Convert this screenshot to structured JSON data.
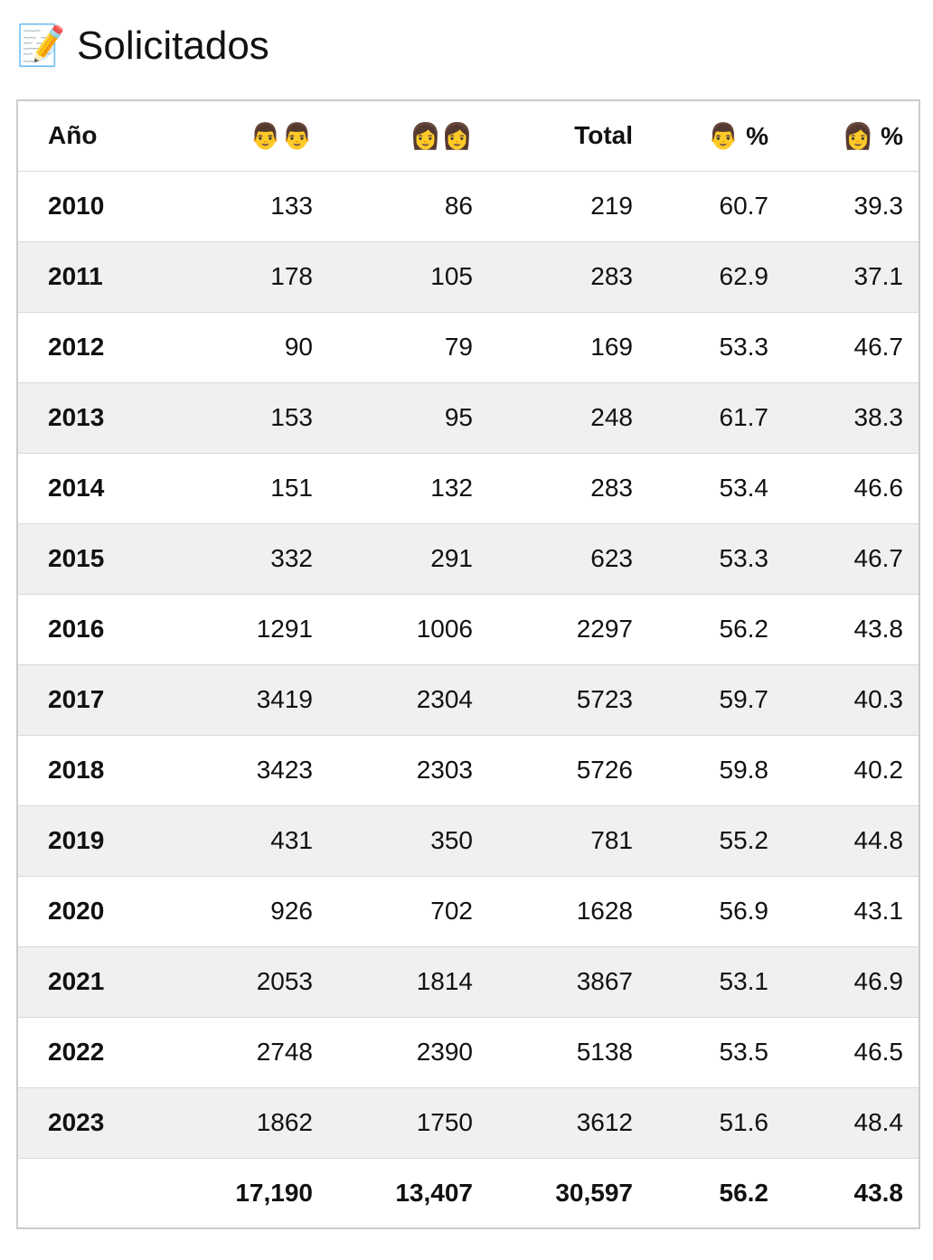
{
  "header": {
    "title": "📝 Solicitados"
  },
  "table": {
    "columns": [
      "Año",
      "👨👨",
      "👩👩",
      "Total",
      "👨 %",
      "👩 %"
    ],
    "rows": [
      [
        "2010",
        133,
        86,
        219,
        60.7,
        39.3
      ],
      [
        "2011",
        178,
        105,
        283,
        62.9,
        37.1
      ],
      [
        "2012",
        90,
        79,
        169,
        53.3,
        46.7
      ],
      [
        "2013",
        153,
        95,
        248,
        61.7,
        38.3
      ],
      [
        "2014",
        151,
        132,
        283,
        53.4,
        46.6
      ],
      [
        "2015",
        332,
        291,
        623,
        53.3,
        46.7
      ],
      [
        "2016",
        1291,
        1006,
        2297,
        56.2,
        43.8
      ],
      [
        "2017",
        3419,
        2304,
        5723,
        59.7,
        40.3
      ],
      [
        "2018",
        3423,
        2303,
        5726,
        59.8,
        40.2
      ],
      [
        "2019",
        431,
        350,
        781,
        55.2,
        44.8
      ],
      [
        "2020",
        926,
        702,
        1628,
        56.9,
        43.1
      ],
      [
        "2021",
        2053,
        1814,
        3867,
        53.1,
        46.9
      ],
      [
        "2022",
        2748,
        2390,
        5138,
        53.5,
        46.5
      ],
      [
        "2023",
        1862,
        1750,
        3612,
        51.6,
        48.4
      ]
    ],
    "totals": [
      "17,190",
      "13,407",
      "30,597",
      56.2,
      43.8
    ]
  }
}
